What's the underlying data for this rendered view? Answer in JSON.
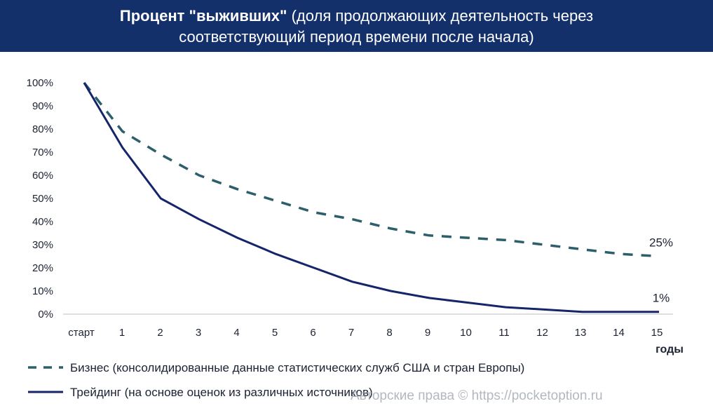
{
  "header": {
    "title_bold": "Процент \"выживших\"",
    "title_rest": "(доля продолжающих деятельность через",
    "title_line2": "соответствующий период времени после начала)"
  },
  "colors": {
    "header_bg": "#13306b",
    "business": "#2c5e6b",
    "trading": "#15256a",
    "axis": "#cfd3da"
  },
  "chart_data": {
    "type": "line",
    "categories": [
      "старт",
      "1",
      "2",
      "3",
      "4",
      "5",
      "6",
      "7",
      "8",
      "9",
      "10",
      "11",
      "12",
      "13",
      "14",
      "15"
    ],
    "x_unit_label": "годы",
    "y_ticks": [
      "0%",
      "10%",
      "20%",
      "30%",
      "40%",
      "50%",
      "60%",
      "70%",
      "80%",
      "90%",
      "100%"
    ],
    "ylim": [
      0,
      100
    ],
    "grid": false,
    "legend_position": "bottom-left",
    "series": [
      {
        "name": "Бизнес (консолидированные данные статистических служб США и стран Европы)",
        "style": "dashed",
        "values": [
          100,
          79,
          69,
          60,
          54,
          49,
          44,
          41,
          37,
          34,
          33,
          32,
          30,
          28,
          26,
          25
        ],
        "end_label": "25%"
      },
      {
        "name": "Трейдинг (на основе оценок из различных источников)",
        "style": "solid",
        "values": [
          100,
          72,
          50,
          41,
          33,
          26,
          20,
          14,
          10,
          7,
          5,
          3,
          2,
          1,
          1,
          1
        ],
        "end_label": "1%"
      }
    ]
  },
  "watermark": "Авторские права © https://pocketoption.ru"
}
